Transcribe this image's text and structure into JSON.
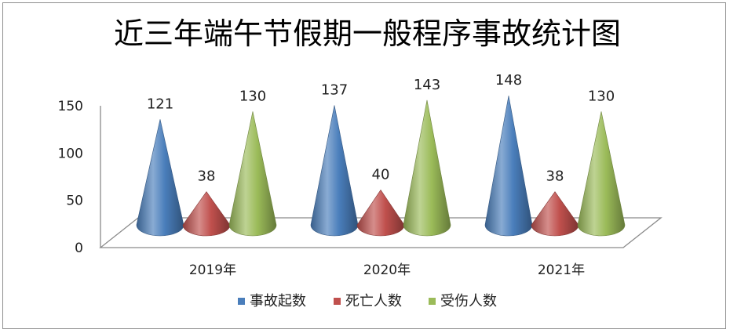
{
  "chart_data": {
    "type": "bar",
    "style": "3d-cone",
    "title": "近三年端午节假期一般程序事故统计图",
    "categories": [
      "2019年",
      "2020年",
      "2021年"
    ],
    "series": [
      {
        "name": "事故起数",
        "color": "#4a7ebb",
        "values": [
          121,
          137,
          148
        ]
      },
      {
        "name": "死亡人数",
        "color": "#c0504d",
        "values": [
          38,
          40,
          38
        ]
      },
      {
        "name": "受伤人数",
        "color": "#9bbb59",
        "values": [
          130,
          143,
          130
        ]
      }
    ],
    "yticks": [
      0,
      50,
      100,
      150
    ],
    "ylim": [
      0,
      150
    ],
    "grid": false,
    "legend_position": "bottom"
  }
}
